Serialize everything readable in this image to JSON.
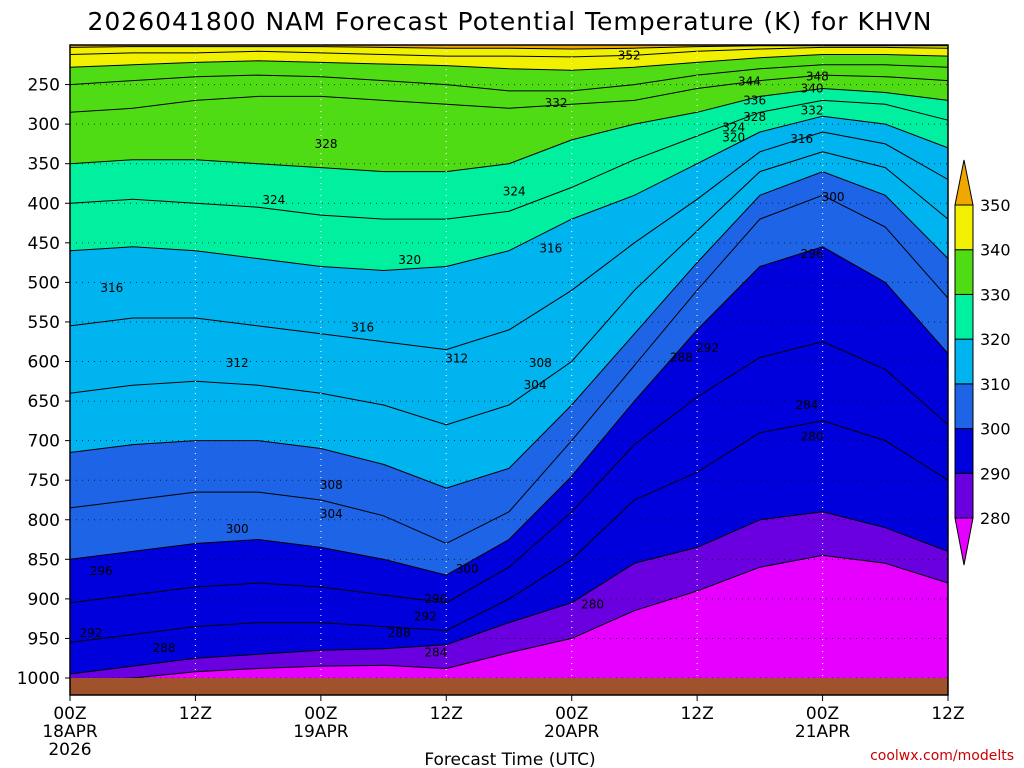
{
  "chart_data": {
    "type": "contour",
    "title": "2026041800 NAM Forecast Potential Temperature (K) for KHVN",
    "xlabel": "Forecast Time (UTC)",
    "ylabel": "",
    "credit": "coolwx.com/modelts",
    "x_ticks": [
      {
        "hours": 0,
        "lines": [
          "00Z",
          "18APR",
          "2026"
        ]
      },
      {
        "hours": 12,
        "lines": [
          "12Z"
        ]
      },
      {
        "hours": 24,
        "lines": [
          "00Z",
          "19APR"
        ]
      },
      {
        "hours": 36,
        "lines": [
          "12Z"
        ]
      },
      {
        "hours": 48,
        "lines": [
          "00Z",
          "20APR"
        ]
      },
      {
        "hours": 60,
        "lines": [
          "12Z"
        ]
      },
      {
        "hours": 72,
        "lines": [
          "00Z",
          "21APR"
        ]
      },
      {
        "hours": 84,
        "lines": [
          "12Z"
        ]
      }
    ],
    "xlim": [
      0,
      84
    ],
    "y_ticks": [
      "250",
      "300",
      "350",
      "400",
      "450",
      "500",
      "550",
      "600",
      "650",
      "700",
      "750",
      "800",
      "850",
      "900",
      "950",
      "1000"
    ],
    "y_tick_values": [
      250,
      300,
      350,
      400,
      450,
      500,
      550,
      600,
      650,
      700,
      750,
      800,
      850,
      900,
      950,
      1000
    ],
    "ylim": [
      200,
      1012
    ],
    "colorbar": {
      "levels": [
        280,
        290,
        300,
        310,
        320,
        330,
        340,
        350
      ],
      "labels": [
        "280",
        "290",
        "300",
        "310",
        "320",
        "330",
        "340",
        "350"
      ],
      "colors": [
        "#9700ee",
        "#6a00e0",
        "#0000dc",
        "#1e64e6",
        "#00b4f0",
        "#00f0a0",
        "#50dc14",
        "#f0f000",
        "#f0a800"
      ],
      "under_color": "#e600ff",
      "over_color": "#f0a800"
    },
    "ground_color": "#a0522d",
    "time_hours": [
      0,
      6,
      12,
      18,
      24,
      30,
      36,
      42,
      48,
      54,
      60,
      66,
      72,
      78,
      84
    ],
    "isentropes": [
      {
        "theta": 282,
        "p": [
          1005,
          1000,
          992,
          988,
          985,
          984,
          988,
          968,
          950,
          915,
          890,
          860,
          845,
          855,
          880
        ]
      },
      {
        "theta": 286,
        "p": [
          995,
          985,
          975,
          970,
          965,
          963,
          958,
          930,
          905,
          855,
          835,
          800,
          790,
          810,
          840
        ]
      },
      {
        "theta": 290,
        "p": [
          955,
          945,
          935,
          930,
          930,
          935,
          940,
          900,
          850,
          775,
          740,
          690,
          675,
          700,
          750
        ]
      },
      {
        "theta": 294,
        "p": [
          905,
          895,
          885,
          880,
          885,
          895,
          905,
          860,
          790,
          705,
          645,
          595,
          575,
          610,
          680
        ]
      },
      {
        "theta": 298,
        "p": [
          850,
          840,
          830,
          825,
          835,
          850,
          870,
          825,
          745,
          650,
          560,
          480,
          455,
          500,
          590
        ]
      },
      {
        "theta": 302,
        "p": [
          785,
          775,
          765,
          765,
          775,
          795,
          830,
          790,
          700,
          605,
          510,
          420,
          390,
          430,
          520
        ]
      },
      {
        "theta": 306,
        "p": [
          715,
          705,
          700,
          700,
          710,
          730,
          760,
          735,
          655,
          565,
          475,
          390,
          360,
          390,
          470
        ]
      },
      {
        "theta": 310,
        "p": [
          640,
          630,
          625,
          630,
          640,
          655,
          680,
          655,
          600,
          510,
          435,
          360,
          335,
          355,
          420
        ]
      },
      {
        "theta": 314,
        "p": [
          555,
          545,
          545,
          555,
          565,
          575,
          585,
          560,
          510,
          450,
          395,
          335,
          310,
          325,
          370
        ]
      },
      {
        "theta": 318,
        "p": [
          460,
          455,
          460,
          470,
          480,
          485,
          480,
          460,
          420,
          390,
          350,
          310,
          290,
          300,
          330
        ]
      },
      {
        "theta": 322,
        "p": [
          400,
          395,
          400,
          405,
          415,
          420,
          420,
          410,
          380,
          345,
          315,
          285,
          270,
          275,
          295
        ]
      },
      {
        "theta": 326,
        "p": [
          350,
          345,
          345,
          350,
          355,
          360,
          360,
          350,
          320,
          300,
          285,
          265,
          255,
          260,
          270
        ]
      },
      {
        "theta": 330,
        "p": [
          285,
          280,
          270,
          265,
          265,
          270,
          275,
          280,
          275,
          270,
          255,
          245,
          238,
          240,
          245
        ]
      },
      {
        "theta": 334,
        "p": [
          250,
          245,
          240,
          238,
          240,
          245,
          250,
          258,
          258,
          250,
          238,
          230,
          225,
          225,
          228
        ]
      },
      {
        "theta": 338,
        "p": [
          228,
          225,
          222,
          220,
          222,
          224,
          226,
          230,
          232,
          228,
          222,
          216,
          212,
          212,
          214
        ]
      },
      {
        "theta": 342,
        "p": [
          212,
          210,
          210,
          208,
          210,
          212,
          214,
          214,
          215,
          213,
          208,
          205,
          203,
          203,
          204
        ]
      },
      {
        "theta": 346,
        "p": [
          203,
          202,
          202,
          202,
          202,
          203,
          204,
          204,
          205,
          204,
          202,
          201,
          201,
          201,
          201
        ]
      }
    ],
    "contour_labels": [
      {
        "text": "352",
        "t": 53.5,
        "p": 213
      },
      {
        "text": "348",
        "t": 71.5,
        "p": 240
      },
      {
        "text": "344",
        "t": 65.0,
        "p": 246
      },
      {
        "text": "340",
        "t": 71.0,
        "p": 255
      },
      {
        "text": "336",
        "t": 65.5,
        "p": 270
      },
      {
        "text": "332",
        "t": 71.0,
        "p": 283
      },
      {
        "text": "332",
        "t": 46.5,
        "p": 273
      },
      {
        "text": "328",
        "t": 65.5,
        "p": 291
      },
      {
        "text": "324",
        "t": 63.5,
        "p": 304
      },
      {
        "text": "320",
        "t": 63.5,
        "p": 317
      },
      {
        "text": "316",
        "t": 70.0,
        "p": 319
      },
      {
        "text": "328",
        "t": 24.5,
        "p": 325
      },
      {
        "text": "324",
        "t": 19.5,
        "p": 396
      },
      {
        "text": "324",
        "t": 42.5,
        "p": 385
      },
      {
        "text": "320",
        "t": 32.5,
        "p": 472
      },
      {
        "text": "316",
        "t": 46.0,
        "p": 457
      },
      {
        "text": "316",
        "t": 4.0,
        "p": 507
      },
      {
        "text": "316",
        "t": 28.0,
        "p": 557
      },
      {
        "text": "312",
        "t": 16.0,
        "p": 602
      },
      {
        "text": "312",
        "t": 37.0,
        "p": 596
      },
      {
        "text": "308",
        "t": 45.0,
        "p": 602
      },
      {
        "text": "304",
        "t": 44.5,
        "p": 630
      },
      {
        "text": "300",
        "t": 73.0,
        "p": 392
      },
      {
        "text": "296",
        "t": 71.0,
        "p": 464
      },
      {
        "text": "292",
        "t": 61.0,
        "p": 583
      },
      {
        "text": "288",
        "t": 58.5,
        "p": 595
      },
      {
        "text": "284",
        "t": 70.5,
        "p": 655
      },
      {
        "text": "280",
        "t": 71.0,
        "p": 695
      },
      {
        "text": "308",
        "t": 25.0,
        "p": 756
      },
      {
        "text": "304",
        "t": 25.0,
        "p": 793
      },
      {
        "text": "300",
        "t": 16.0,
        "p": 812
      },
      {
        "text": "296",
        "t": 3.0,
        "p": 865
      },
      {
        "text": "292",
        "t": 2.0,
        "p": 943
      },
      {
        "text": "288",
        "t": 9.0,
        "p": 962
      },
      {
        "text": "300",
        "t": 38.0,
        "p": 862
      },
      {
        "text": "296",
        "t": 35.0,
        "p": 900
      },
      {
        "text": "292",
        "t": 34.0,
        "p": 922
      },
      {
        "text": "288",
        "t": 31.5,
        "p": 943
      },
      {
        "text": "284",
        "t": 35.0,
        "p": 968
      },
      {
        "text": "280",
        "t": 50.0,
        "p": 907
      }
    ]
  }
}
